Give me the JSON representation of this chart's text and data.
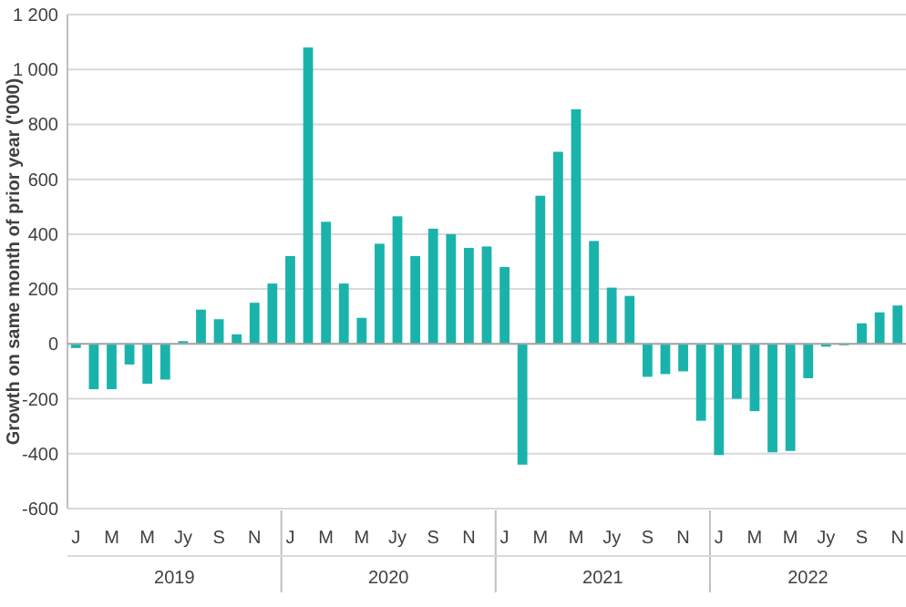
{
  "chart_data": {
    "type": "bar",
    "ylabel": "Growth on same month of prior year ('000)",
    "categories": [
      "J",
      null,
      "M",
      null,
      "M",
      null,
      "Jy",
      null,
      "S",
      null,
      "N",
      null,
      "J",
      null,
      "M",
      null,
      "M",
      null,
      "Jy",
      null,
      "S",
      null,
      "N",
      null,
      "J",
      null,
      "M",
      null,
      "M",
      null,
      "Jy",
      null,
      "S",
      null,
      "N",
      null,
      "J",
      null,
      "M",
      null,
      "M",
      null,
      "Jy",
      null,
      "S",
      null,
      "N"
    ],
    "values": [
      -15,
      -165,
      -165,
      -75,
      -145,
      -130,
      10,
      125,
      90,
      35,
      150,
      220,
      320,
      1080,
      445,
      220,
      95,
      365,
      465,
      320,
      420,
      400,
      350,
      355,
      280,
      -440,
      540,
      700,
      855,
      375,
      205,
      175,
      -120,
      -110,
      -100,
      -280,
      -405,
      -200,
      -245,
      -395,
      -390,
      -125,
      -10,
      -5,
      75,
      115,
      140
    ],
    "color": "#1ab3ac",
    "ylim": [
      -600,
      1200
    ],
    "yticks": [
      {
        "value": -600,
        "label": "-600"
      },
      {
        "value": -400,
        "label": "-400"
      },
      {
        "value": -200,
        "label": "-200"
      },
      0,
      200,
      400,
      600,
      800,
      {
        "value": 1000,
        "label": "1 000"
      },
      {
        "value": 1200,
        "label": "1 200"
      }
    ],
    "grid": "y",
    "annotations": [
      "2019",
      "2020",
      "2021",
      "2022"
    ]
  }
}
